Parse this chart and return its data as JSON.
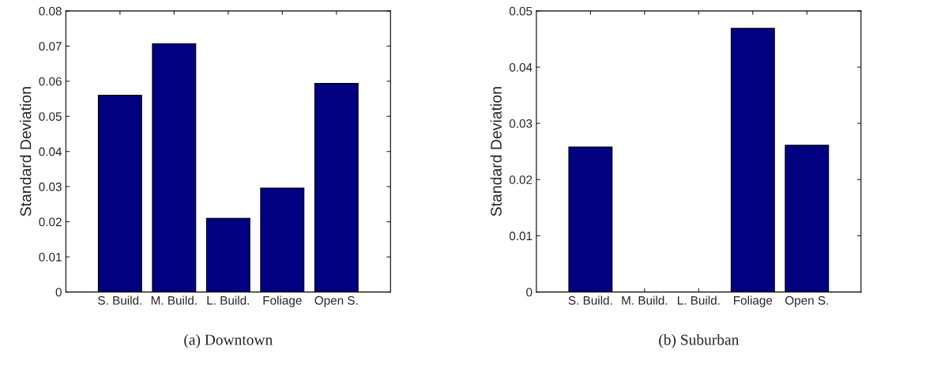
{
  "chart_data": [
    {
      "type": "bar",
      "title": "(a) Downtown",
      "ylabel": "Standard Deviation",
      "categories": [
        "S. Build.",
        "M. Build.",
        "L. Build.",
        "Foliage",
        "Open S."
      ],
      "values": [
        0.056,
        0.0707,
        0.021,
        0.0296,
        0.0594
      ],
      "color": "#000080",
      "ylim": [
        0,
        0.08
      ],
      "yticks": [
        0,
        0.01,
        0.02,
        0.03,
        0.04,
        0.05,
        0.06,
        0.07,
        0.08
      ],
      "grid": false
    },
    {
      "type": "bar",
      "title": "(b) Suburban",
      "ylabel": "Standard Deviation",
      "categories": [
        "S. Build.",
        "M. Build.",
        "L. Build.",
        "Foliage",
        "Open S."
      ],
      "values": [
        0.0258,
        null,
        null,
        0.0469,
        0.0261
      ],
      "color": "#000080",
      "ylim": [
        0,
        0.05
      ],
      "yticks": [
        0,
        0.01,
        0.02,
        0.03,
        0.04,
        0.05
      ],
      "grid": false
    }
  ]
}
